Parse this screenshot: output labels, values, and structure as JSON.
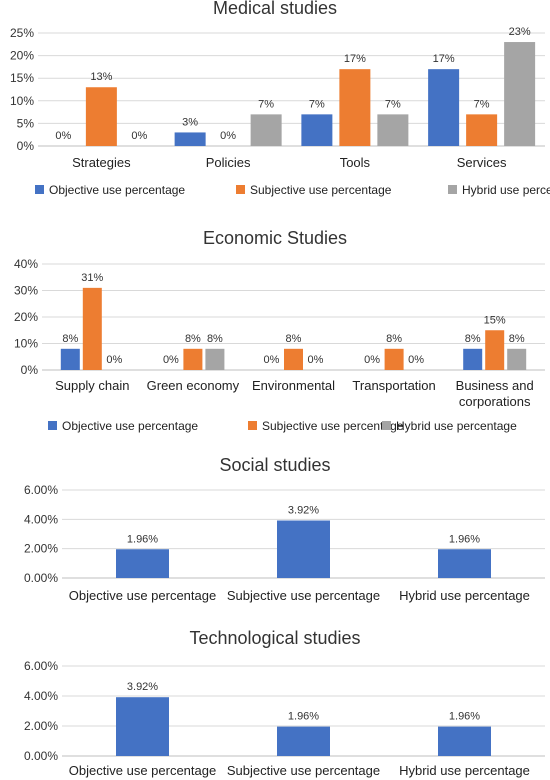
{
  "colors": {
    "objective": "#4472c4",
    "subjective": "#ed7d31",
    "hybrid": "#a5a5a5",
    "grid": "#d9d9d9",
    "axis": "#bfbfbf"
  },
  "chart_data": [
    {
      "type": "bar",
      "title": "Medical studies",
      "categories": [
        "Strategies",
        "Policies",
        "Tools",
        "Services"
      ],
      "series": [
        {
          "name": "Objective use percentage",
          "values": [
            0,
            3,
            7,
            17
          ]
        },
        {
          "name": "Subjective use percentage",
          "values": [
            13,
            0,
            17,
            7
          ]
        },
        {
          "name": "Hybrid use percentage",
          "values": [
            0,
            7,
            7,
            23
          ]
        }
      ],
      "data_labels": [
        [
          "0%",
          "3%",
          "7%",
          "17%"
        ],
        [
          "13%",
          "0%",
          "17%",
          "7%"
        ],
        [
          "0%",
          "7%",
          "7%",
          "23%"
        ]
      ],
      "ylim": [
        0,
        25
      ],
      "yticks": [
        "0%",
        "5%",
        "10%",
        "15%",
        "20%",
        "25%"
      ],
      "grid": true,
      "legend": "bottom"
    },
    {
      "type": "bar",
      "title": "Economic Studies",
      "categories": [
        "Supply chain",
        "Green economy",
        "Environmental",
        "Transportation",
        "Business and corporations"
      ],
      "series": [
        {
          "name": "Objective use percentage",
          "values": [
            8,
            0,
            0,
            0,
            8
          ]
        },
        {
          "name": "Subjective use percentage",
          "values": [
            31,
            8,
            8,
            8,
            15
          ]
        },
        {
          "name": "Hybrid use percentage",
          "values": [
            0,
            8,
            0,
            0,
            8
          ]
        }
      ],
      "data_labels": [
        [
          "8%",
          "0%",
          "0%",
          "0%",
          "8%"
        ],
        [
          "31%",
          "8%",
          "8%",
          "8%",
          "15%"
        ],
        [
          "0%",
          "8%",
          "0%",
          "0%",
          "8%"
        ]
      ],
      "ylim": [
        0,
        40
      ],
      "yticks": [
        "0%",
        "10%",
        "20%",
        "30%",
        "40%"
      ],
      "grid": true,
      "legend": "bottom"
    },
    {
      "type": "bar",
      "title": "Social studies",
      "categories": [
        "Objective use percentage",
        "Subjective use percentage",
        "Hybrid use percentage"
      ],
      "values": [
        1.96,
        3.92,
        1.96
      ],
      "data_labels": [
        "1.96%",
        "3.92%",
        "1.96%"
      ],
      "ylim": [
        0,
        6
      ],
      "yticks": [
        "0.00%",
        "2.00%",
        "4.00%",
        "6.00%"
      ],
      "grid": true
    },
    {
      "type": "bar",
      "title": "Technological studies",
      "categories": [
        "Objective use percentage",
        "Subjective use percentage",
        "Hybrid use percentage"
      ],
      "values": [
        3.92,
        1.96,
        1.96
      ],
      "data_labels": [
        "3.92%",
        "1.96%",
        "1.96%"
      ],
      "ylim": [
        0,
        6
      ],
      "yticks": [
        "0.00%",
        "2.00%",
        "4.00%",
        "6.00%"
      ],
      "grid": true
    }
  ]
}
